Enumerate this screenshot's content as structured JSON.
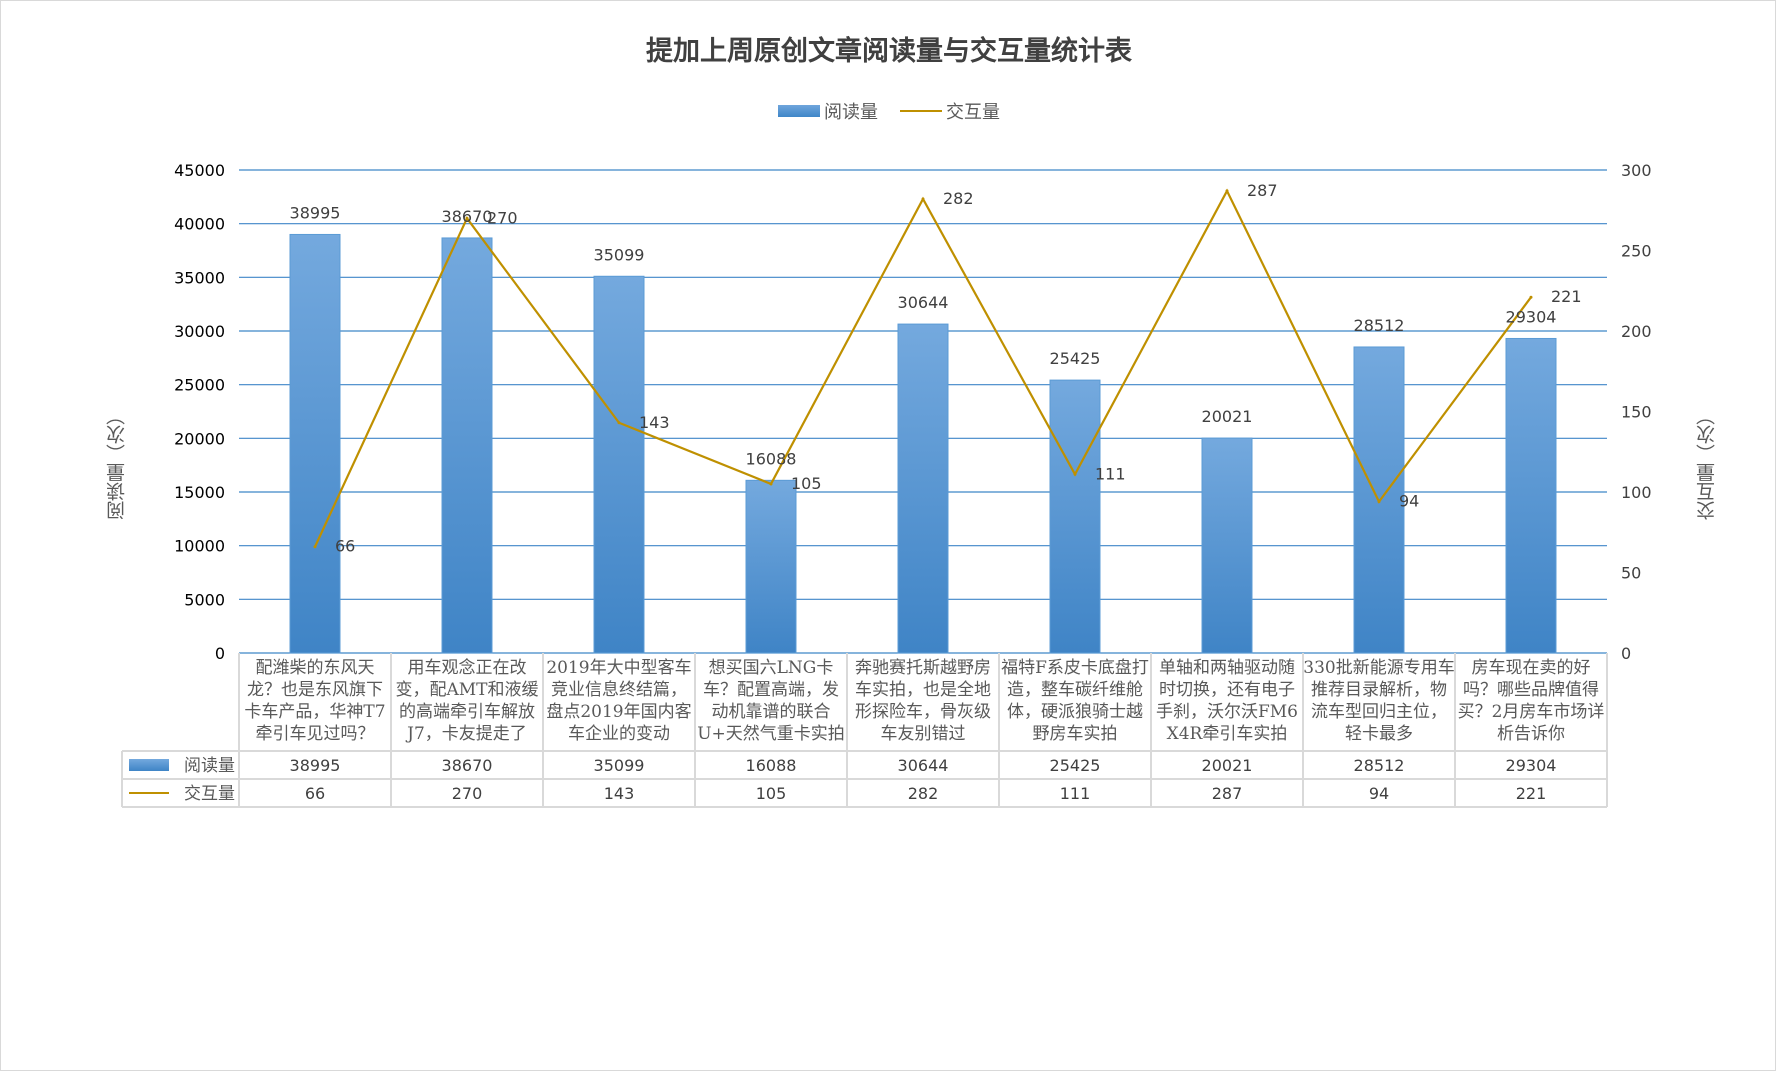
{
  "title": "提加上周原创文章阅读量与交互量统计表",
  "legend": {
    "bar": "阅读量",
    "line": "交互量"
  },
  "colors": {
    "bar": "#5b9bd5",
    "line": "#bf9000",
    "grid": "#3f86c8"
  },
  "chart_data": {
    "type": "bar+line",
    "title": "提加上周原创文章阅读量与交互量统计表",
    "categories": [
      "配潍柴的东风天龙？也是东风旗下卡车产品，华神T7牵引车见过吗？",
      "用车观念正在改变，配AMT和液缓的高端牵引车解放J7，卡友提走了",
      "2019年大中型客车竞业信息终结篇，盘点2019年国内客车企业的变动",
      "想买国六LNG卡车？配置高端，发动机靠谱的联合U+天然气重卡实拍",
      "奔驰赛托斯越野房车实拍，也是全地形探险车，骨灰级车友别错过",
      "福特F系皮卡底盘打造，整车碳纤维舱体，硬派狼骑士越野房车实拍",
      "单轴和两轴驱动随时切换，还有电子手刹，沃尔沃FM6 X4R牵引车实拍",
      "330批新能源专用车推荐目录解析，物流车型回归主位，轻卡最多",
      "房车现在卖的好吗？哪些品牌值得买？2月房车市场详析告诉你"
    ],
    "series": [
      {
        "name": "阅读量",
        "type": "bar",
        "axis": "left",
        "values": [
          38995,
          38670,
          35099,
          16088,
          30644,
          25425,
          20021,
          28512,
          29304
        ]
      },
      {
        "name": "交互量",
        "type": "line",
        "axis": "right",
        "values": [
          66,
          270,
          143,
          105,
          282,
          111,
          287,
          94,
          221
        ]
      }
    ],
    "ylabel_left": "阅读量（次）",
    "ylabel_right": "交互量（次）",
    "ylim_left": [
      0,
      45000
    ],
    "ylim_right": [
      0,
      300
    ],
    "yticks_left": [
      "0",
      "5000",
      "10000",
      "15000",
      "20000",
      "25000",
      "30000",
      "35000",
      "40000",
      "45000"
    ],
    "yticks_right": [
      "0",
      "50",
      "100",
      "150",
      "200",
      "250",
      "300"
    ],
    "grid": true,
    "legend_position": "top",
    "data_table": true
  }
}
